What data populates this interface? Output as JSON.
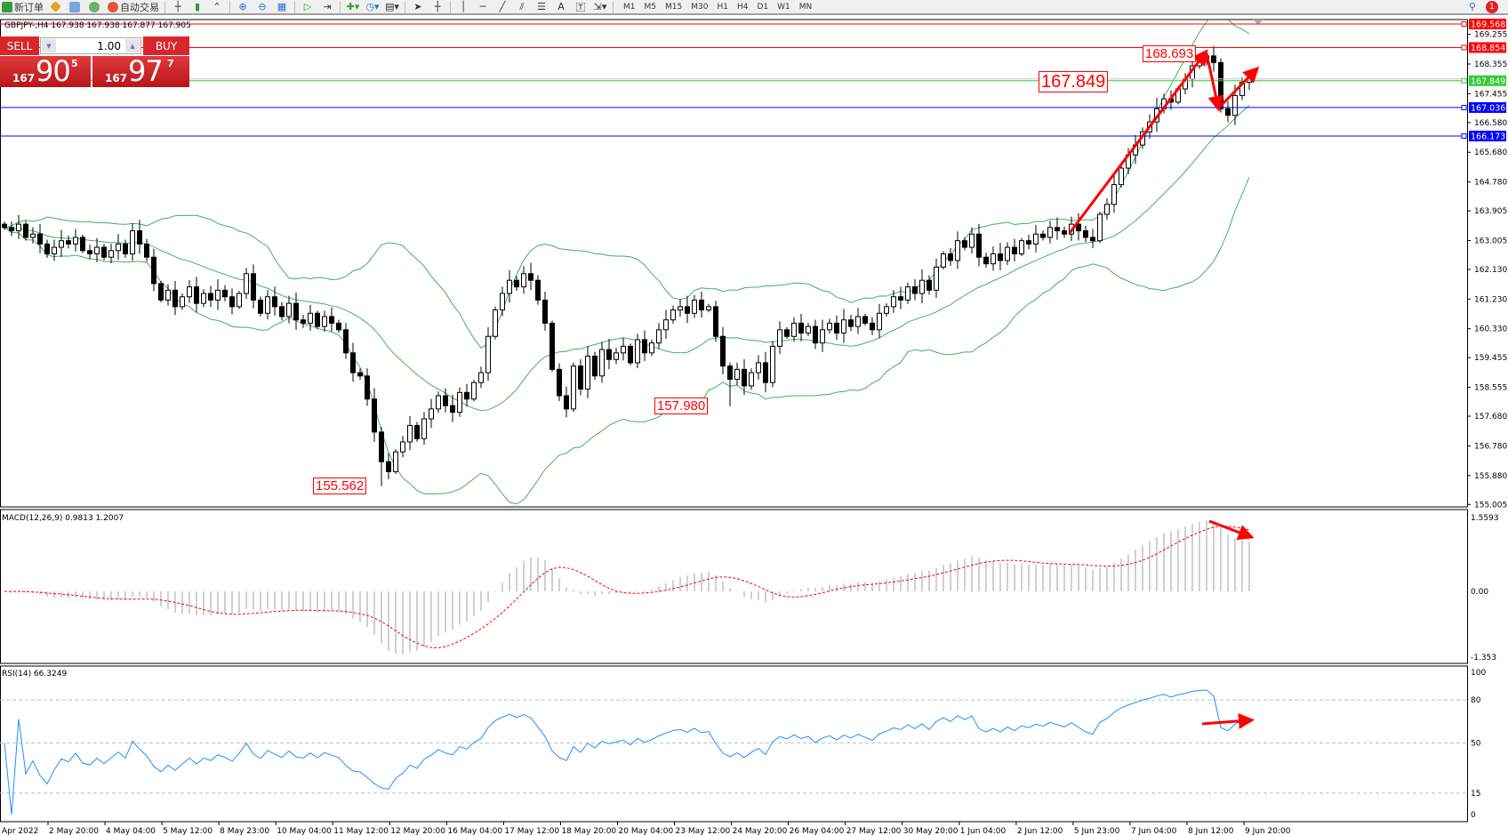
{
  "toolbar": {
    "new_order": "新订单",
    "auto_trading": "自动交易",
    "timeframes": [
      "M1",
      "M5",
      "M15",
      "M30",
      "H1",
      "H4",
      "D1",
      "W1",
      "MN"
    ],
    "notification_count": "1"
  },
  "symbol_line": "GBPJPY-,H4  167.938 167.938 167.877 167.905",
  "one_click": {
    "sell_label": "SELL",
    "buy_label": "BUY",
    "lot": "1.00",
    "sell": {
      "prefix": "167",
      "big": "90",
      "sup": "5"
    },
    "buy": {
      "prefix": "167",
      "big": "97",
      "sup": "7"
    }
  },
  "colors": {
    "bull_candle": "#ffffff",
    "bear_candle": "#000000",
    "bands": "#3cb55a",
    "resistance": "#ff0000",
    "pivot": "#33cc33",
    "support": "#0000ff",
    "macd_hist": "#c0c0c0",
    "macd_signal": "#ff0000",
    "rsi": "#1e90ff",
    "arrows": "#ff0000"
  },
  "chart_data": {
    "type": "candlestick",
    "symbol": "GBPJPY-",
    "timeframe": "H4",
    "ylim": [
      155.005,
      169.568
    ],
    "price_ticks": [
      "169.255",
      "168.355",
      "167.455",
      "166.580",
      "165.680",
      "164.780",
      "163.905",
      "163.005",
      "162.130",
      "161.230",
      "160.330",
      "159.455",
      "158.555",
      "157.680",
      "156.780",
      "155.880",
      "155.005"
    ],
    "horizontal_lines": [
      {
        "price": "169.568",
        "color": "#ff0000"
      },
      {
        "price": "168.854",
        "color": "#ff0000"
      },
      {
        "price": "167.849",
        "color": "#33cc33"
      },
      {
        "price": "167.036",
        "color": "#0000ff"
      },
      {
        "price": "166.173",
        "color": "#0000ff"
      }
    ],
    "time_labels": [
      "Apr 2022",
      "2 May 20:00",
      "4 May 04:00",
      "5 May 12:00",
      "8 May 23:00",
      "10 May 04:00",
      "11 May 12:00",
      "12 May 20:00",
      "16 May 04:00",
      "17 May 12:00",
      "18 May 20:00",
      "20 May 04:00",
      "23 May 12:00",
      "24 May 20:00",
      "26 May 04:00",
      "27 May 12:00",
      "30 May 20:00",
      "1 Jun 04:00",
      "2 Jun 12:00",
      "5 Jun 23:00",
      "7 Jun 04:00",
      "8 Jun 12:00",
      "9 Jun 20:00"
    ],
    "closes": [
      163.4,
      163.3,
      163.5,
      163.1,
      163.2,
      162.9,
      162.6,
      162.8,
      163.0,
      162.9,
      163.1,
      162.7,
      162.6,
      162.8,
      162.5,
      162.7,
      162.9,
      162.6,
      163.3,
      162.9,
      162.5,
      161.7,
      161.2,
      161.5,
      161.0,
      161.3,
      161.6,
      161.1,
      161.4,
      161.2,
      161.5,
      161.3,
      161.0,
      161.4,
      162.0,
      161.2,
      160.8,
      161.3,
      161.0,
      160.7,
      161.1,
      160.6,
      160.5,
      160.8,
      160.4,
      160.7,
      160.5,
      160.3,
      159.6,
      159.0,
      158.9,
      158.2,
      157.2,
      156.3,
      156.0,
      156.6,
      156.9,
      157.4,
      157.0,
      157.6,
      157.9,
      158.3,
      158.0,
      157.8,
      158.4,
      158.2,
      158.7,
      159.0,
      160.1,
      160.9,
      161.4,
      161.8,
      161.6,
      162.0,
      161.8,
      161.2,
      160.5,
      159.1,
      158.3,
      157.9,
      159.2,
      158.5,
      159.5,
      158.9,
      159.7,
      159.4,
      159.6,
      159.8,
      159.3,
      160.0,
      159.6,
      159.9,
      160.3,
      160.6,
      160.9,
      161.0,
      160.8,
      161.2,
      160.9,
      161.0,
      160.1,
      159.2,
      158.8,
      159.1,
      158.6,
      159.0,
      159.3,
      158.7,
      159.8,
      160.3,
      160.1,
      160.5,
      160.2,
      160.4,
      159.9,
      160.3,
      160.5,
      160.2,
      160.6,
      160.4,
      160.7,
      160.5,
      160.3,
      160.8,
      161.0,
      161.3,
      161.2,
      161.6,
      161.4,
      161.8,
      161.5,
      162.2,
      162.6,
      162.4,
      163.0,
      162.8,
      163.2,
      162.5,
      162.3,
      162.6,
      162.4,
      162.8,
      162.6,
      163.0,
      162.9,
      163.2,
      163.1,
      163.4,
      163.3,
      163.2,
      163.5,
      163.3,
      163.1,
      163.0,
      163.8,
      164.1,
      164.7,
      165.2,
      165.6,
      165.9,
      166.3,
      166.6,
      167.0,
      167.3,
      167.2,
      167.6,
      167.9,
      168.3,
      168.5,
      168.6,
      168.4,
      167.0,
      166.8,
      167.4,
      167.8,
      167.905
    ],
    "extremes": [
      {
        "index": 53,
        "low": 155.562
      },
      {
        "index": 102,
        "low": 157.98
      },
      {
        "index": 169,
        "high": 168.693
      }
    ],
    "annotations": {
      "high": "168.693",
      "pivot": "167.849",
      "low1": "157.980",
      "low2": "155.562"
    },
    "indicators": {
      "bollinger": {
        "period": 20,
        "deviation": 2
      },
      "macd": {
        "label": "MACD(12,26,9) 0.9813 1.2007",
        "ticks": [
          "1.5593",
          "0.00",
          "-1.353"
        ],
        "ylim": [
          -1.353,
          1.5593
        ]
      },
      "rsi": {
        "label": "RSI(14) 66.3249",
        "ticks": [
          "100",
          "80",
          "50",
          "15",
          "0"
        ],
        "levels": [
          80,
          50,
          15
        ],
        "ylim": [
          0,
          100
        ]
      }
    }
  }
}
